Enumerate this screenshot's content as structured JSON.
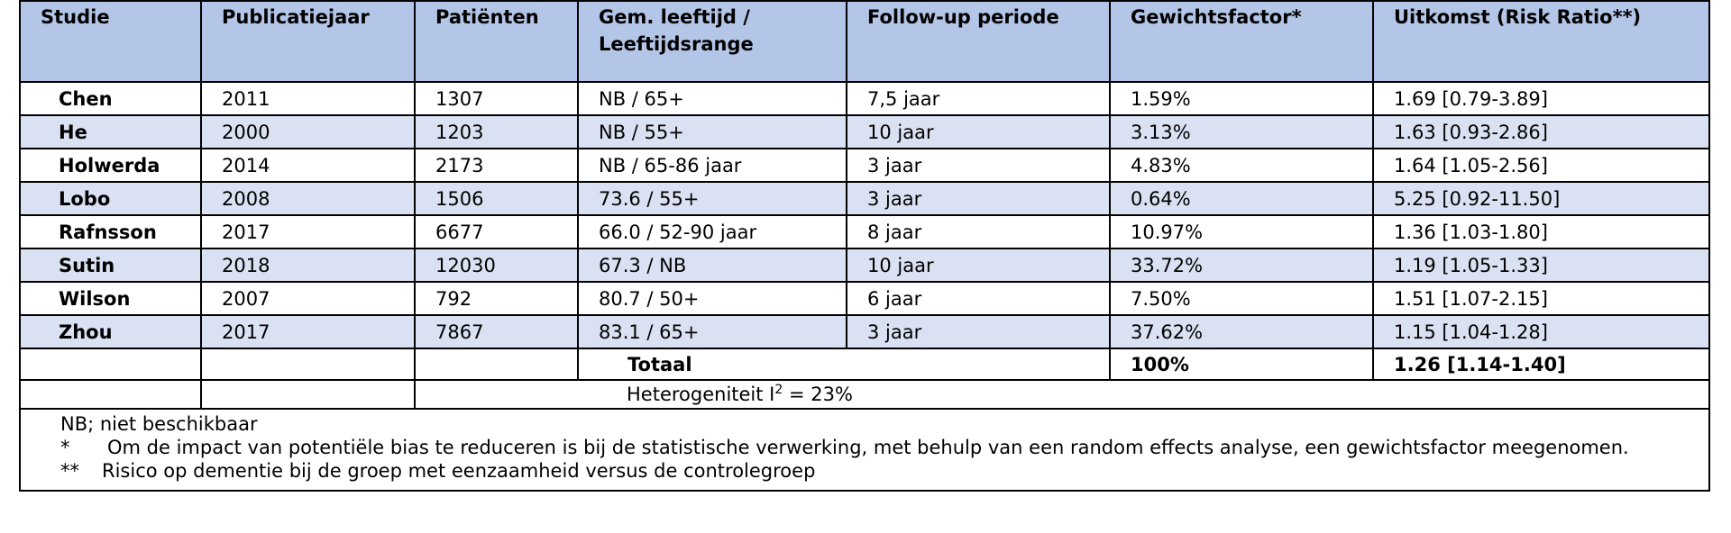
{
  "table": {
    "headers": [
      "Studie",
      "Publicatiejaar",
      "Patiënten",
      "Gem. leeftijd / Leeftijdsrange",
      "Follow-up periode",
      "Gewichtsfactor*",
      "Uitkomst (Risk Ratio**)"
    ],
    "rows": [
      [
        "Chen",
        "2011",
        "1307",
        "NB / 65+",
        "7,5 jaar",
        "1.59%",
        "1.69 [0.79-3.89]"
      ],
      [
        "He",
        "2000",
        "1203",
        "NB / 55+",
        "10 jaar",
        "3.13%",
        "1.63 [0.93-2.86]"
      ],
      [
        "Holwerda",
        "2014",
        "2173",
        "NB / 65-86 jaar",
        "3 jaar",
        "4.83%",
        "1.64 [1.05-2.56]"
      ],
      [
        "Lobo",
        "2008",
        "1506",
        "73.6 / 55+",
        "3 jaar",
        "0.64%",
        "5.25 [0.92-11.50]"
      ],
      [
        "Rafnsson",
        "2017",
        "6677",
        "66.0 / 52-90 jaar",
        "8 jaar",
        "10.97%",
        "1.36 [1.03-1.80]"
      ],
      [
        "Sutin",
        "2018",
        "12030",
        "67.3 / NB",
        "10 jaar",
        "33.72%",
        "1.19 [1.05-1.33]"
      ],
      [
        "Wilson",
        "2007",
        "792",
        "80.7 / 50+",
        "6 jaar",
        "7.50%",
        "1.51 [1.07-2.15]"
      ],
      [
        "Zhou",
        "2017",
        "7867",
        "83.1 / 65+",
        "3 jaar",
        "37.62%",
        "1.15 [1.04-1.28]"
      ]
    ],
    "total": {
      "label": "Totaal",
      "weight": "100%",
      "outcome": "1.26 [1.14-1.40]"
    },
    "heterogeneity": {
      "prefix": "Heterogeniteit I",
      "superscript": "2",
      "suffix": " = 23%"
    },
    "notes": [
      {
        "mark": "",
        "text": "NB; niet beschikbaar"
      },
      {
        "mark": "*",
        "text": "Om de impact van potentiële bias te reduceren is bij de statistische verwerking, met behulp van een random effects analyse, een gewichtsfactor meegenomen."
      },
      {
        "mark": "**",
        "text": "Risico op dementie bij de groep met eenzaamheid versus de controlegroep"
      }
    ]
  },
  "colors": {
    "header_bg": "#b4c6e7",
    "shaded_row_bg": "#d9e1f2",
    "border": "#000000"
  }
}
